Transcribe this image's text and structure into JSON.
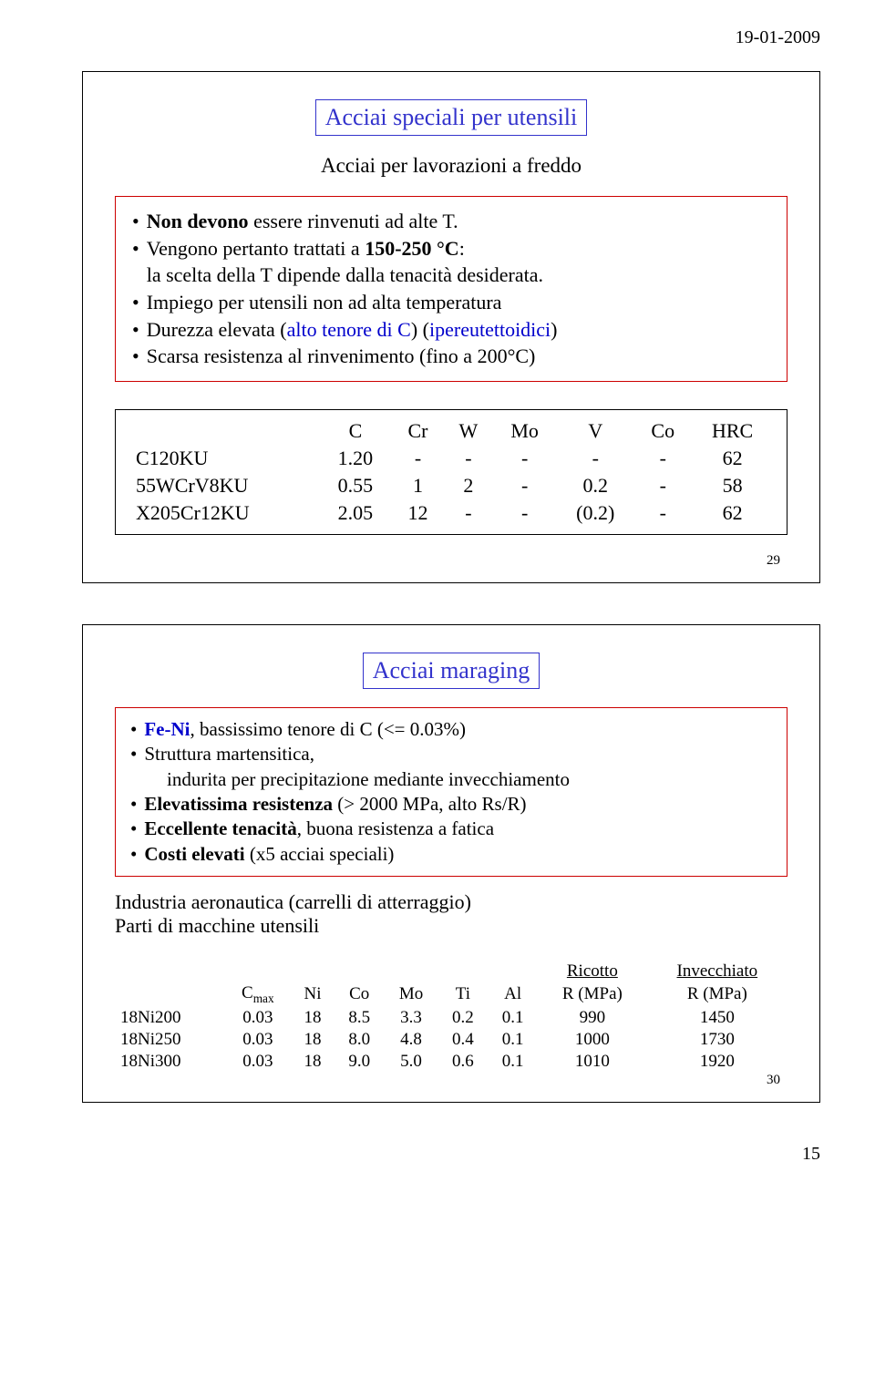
{
  "header": {
    "date": "19-01-2009"
  },
  "footer": {
    "page": "15"
  },
  "slide1": {
    "number": "29",
    "title": "Acciai speciali per utensili",
    "subtitle": "Acciai per lavorazioni a freddo",
    "bullets": {
      "b1a": "Non devono",
      "b1b": " essere rinvenuti ad alte T.",
      "b2a": "Vengono pertanto trattati a ",
      "b2b": "150-250 °C",
      "b2c": ":",
      "b2d": "la scelta della T dipende dalla tenacità desiderata.",
      "b3": "Impiego per utensili non ad alta temperatura",
      "b4a": "Durezza elevata (",
      "b4b": "alto tenore di C",
      "b4c": ") (",
      "b4d": "ipereutettoidici",
      "b4e": ")",
      "b5": "Scarsa resistenza al rinvenimento (fino a 200°C)"
    },
    "table": {
      "headers": [
        "",
        "C",
        "Cr",
        "W",
        "Mo",
        "V",
        "Co",
        "HRC"
      ],
      "rows": [
        [
          "C120KU",
          "1.20",
          "-",
          "-",
          "-",
          "-",
          "-",
          "62"
        ],
        [
          "55WCrV8KU",
          "0.55",
          "1",
          "2",
          "-",
          "0.2",
          "-",
          "58"
        ],
        [
          "X205Cr12KU",
          "2.05",
          "12",
          "-",
          "-",
          "(0.2)",
          "-",
          "62"
        ]
      ]
    }
  },
  "slide2": {
    "number": "30",
    "title": "Acciai maraging",
    "bullets": {
      "b1a": "Fe-Ni",
      "b1b": ", bassissimo tenore di C (<= 0.03%)",
      "b2": "Struttura martensitica,",
      "b2i": "indurita per precipitazione mediante invecchiamento",
      "b3a": "Elevatissima resistenza",
      "b3b": " (> 2000 MPa, alto Rs/R)",
      "b4a": "Eccellente tenacità",
      "b4b": ", buona resistenza a fatica",
      "b5a": "Costi elevati",
      "b5b": " (x5 acciai speciali)"
    },
    "lines": {
      "l1": "Industria aeronautica (carrelli di atterraggio)",
      "l2": "Parti di macchine utensili"
    },
    "table": {
      "top": {
        "ricotto": "Ricotto",
        "invecchiato": "Invecchiato"
      },
      "headers": [
        "",
        "C",
        "Ni",
        "Co",
        "Mo",
        "Ti",
        "Al",
        "R (MPa)",
        "R (MPa)"
      ],
      "cmax_sub": "max",
      "rows": [
        [
          "18Ni200",
          "0.03",
          "18",
          "8.5",
          "3.3",
          "0.2",
          "0.1",
          "990",
          "1450"
        ],
        [
          "18Ni250",
          "0.03",
          "18",
          "8.0",
          "4.8",
          "0.4",
          "0.1",
          "1000",
          "1730"
        ],
        [
          "18Ni300",
          "0.03",
          "18",
          "9.0",
          "5.0",
          "0.6",
          "0.1",
          "1010",
          "1920"
        ]
      ]
    }
  }
}
